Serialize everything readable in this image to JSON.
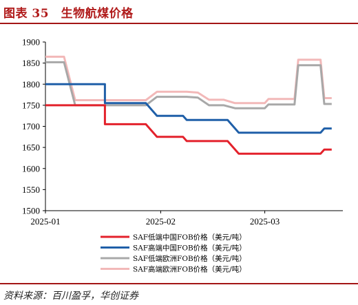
{
  "header": {
    "title": "图表 35　生物航煤价格"
  },
  "footer": {
    "source": "资料来源：百川盈孚，华创证券"
  },
  "chart_data": {
    "type": "line",
    "ylim": [
      1500,
      1900
    ],
    "yticks": [
      1500,
      1550,
      1600,
      1650,
      1700,
      1750,
      1800,
      1850,
      1900
    ],
    "xlim": [
      0,
      80
    ],
    "xticks": [
      {
        "x": 0,
        "label": "2025-01"
      },
      {
        "x": 31,
        "label": "2025-02"
      },
      {
        "x": 59,
        "label": "2025-03"
      }
    ],
    "grid": false,
    "legend": "bottom",
    "series": [
      {
        "name": "SAF低端中国FOB价格（美元/吨）",
        "color": "#e3212b",
        "points": [
          [
            0,
            1750
          ],
          [
            9,
            1750
          ],
          [
            16,
            1750
          ],
          [
            16,
            1705
          ],
          [
            27,
            1705
          ],
          [
            30,
            1675
          ],
          [
            37,
            1675
          ],
          [
            38,
            1665
          ],
          [
            49,
            1665
          ],
          [
            52,
            1635
          ],
          [
            74,
            1635
          ],
          [
            75,
            1645
          ],
          [
            77,
            1645
          ]
        ]
      },
      {
        "name": "SAF高端中国FOB价格（美元/吨）",
        "color": "#1f5fa8",
        "points": [
          [
            0,
            1800
          ],
          [
            16,
            1800
          ],
          [
            16,
            1755
          ],
          [
            27,
            1755
          ],
          [
            30,
            1725
          ],
          [
            37,
            1725
          ],
          [
            38,
            1715
          ],
          [
            49,
            1715
          ],
          [
            52,
            1685
          ],
          [
            74,
            1685
          ],
          [
            75,
            1695
          ],
          [
            77,
            1695
          ]
        ]
      },
      {
        "name": "SAF低端欧洲FOB价格（美元/吨）",
        "color": "#a8a8a8",
        "points": [
          [
            0,
            1852
          ],
          [
            5,
            1852
          ],
          [
            8,
            1750
          ],
          [
            27,
            1750
          ],
          [
            30,
            1770
          ],
          [
            38,
            1770
          ],
          [
            41,
            1768
          ],
          [
            44,
            1750
          ],
          [
            48,
            1750
          ],
          [
            51,
            1743
          ],
          [
            59,
            1743
          ],
          [
            60,
            1752
          ],
          [
            67,
            1752
          ],
          [
            68,
            1845
          ],
          [
            74,
            1845
          ],
          [
            75,
            1753
          ],
          [
            77,
            1753
          ]
        ]
      },
      {
        "name": "SAF高端欧洲FOB价格（美元/吨）",
        "color": "#f2b8b8",
        "points": [
          [
            0,
            1865
          ],
          [
            5,
            1865
          ],
          [
            8,
            1762
          ],
          [
            27,
            1762
          ],
          [
            30,
            1782
          ],
          [
            38,
            1782
          ],
          [
            41,
            1780
          ],
          [
            44,
            1763
          ],
          [
            48,
            1763
          ],
          [
            51,
            1755
          ],
          [
            59,
            1755
          ],
          [
            60,
            1765
          ],
          [
            67,
            1765
          ],
          [
            68,
            1858
          ],
          [
            74,
            1858
          ],
          [
            75,
            1767
          ],
          [
            77,
            1767
          ]
        ]
      }
    ]
  }
}
